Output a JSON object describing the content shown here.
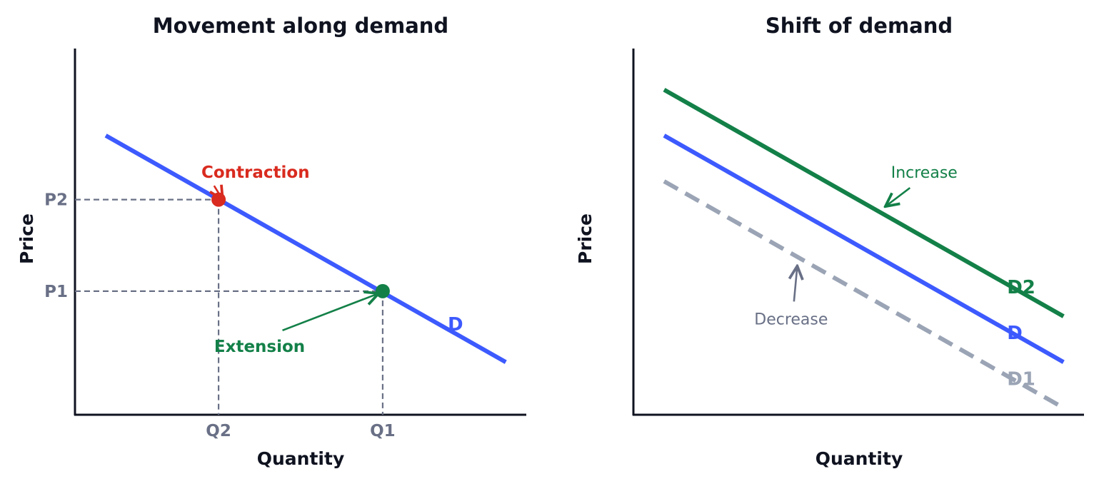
{
  "chart_data": [
    {
      "type": "line",
      "title": "Movement along demand",
      "xlabel": "Quantity",
      "ylabel": "Price",
      "xlim": [
        0,
        11
      ],
      "ylim": [
        0,
        8
      ],
      "grid": false,
      "x_ticks": [
        {
          "value": 3.5,
          "label": "Q2"
        },
        {
          "value": 7.5,
          "label": "Q1"
        }
      ],
      "y_ticks": [
        {
          "value": 2.7,
          "label": "P1"
        },
        {
          "value": 4.7,
          "label": "P2"
        }
      ],
      "series": [
        {
          "name": "D",
          "color": "#3d5afe",
          "style": "solid",
          "x": [
            0.75,
            10.5
          ],
          "y": [
            6.1,
            1.15
          ]
        }
      ],
      "points": [
        {
          "x": 3.5,
          "y": 4.7,
          "color": "#d92b1f"
        },
        {
          "x": 7.5,
          "y": 2.7,
          "color": "#138048"
        }
      ],
      "annotations": [
        {
          "text": "Contraction",
          "color": "#d92b1f",
          "x": 4.4,
          "y": 5.3,
          "target_x": 3.6,
          "target_y": 4.7
        },
        {
          "text": "Extension",
          "color": "#138048",
          "x": 4.5,
          "y": 1.5,
          "target_x": 7.4,
          "target_y": 2.65
        }
      ]
    },
    {
      "type": "line",
      "title": "Shift of demand",
      "xlabel": "Quantity",
      "ylabel": "Price",
      "xlim": [
        0,
        11
      ],
      "ylim": [
        0,
        8
      ],
      "grid": false,
      "series": [
        {
          "name": "D2",
          "color": "#138048",
          "style": "solid",
          "x": [
            0.75,
            10.5
          ],
          "y": [
            7.1,
            2.15
          ]
        },
        {
          "name": "D",
          "color": "#3d5afe",
          "style": "solid",
          "x": [
            0.75,
            10.5
          ],
          "y": [
            6.1,
            1.15
          ]
        },
        {
          "name": "D1",
          "color": "#9aa4b5",
          "style": "dashed",
          "x": [
            0.75,
            10.5
          ],
          "y": [
            5.1,
            0.15
          ]
        }
      ],
      "annotations": [
        {
          "text": "Increase",
          "color": "#138048",
          "x": 7.1,
          "y": 5.3,
          "target_x": 6.15,
          "target_y": 4.55
        },
        {
          "text": "Decrease",
          "color": "#697086",
          "x": 3.85,
          "y": 2.1,
          "target_x": 4.0,
          "target_y": 3.25
        }
      ]
    }
  ]
}
